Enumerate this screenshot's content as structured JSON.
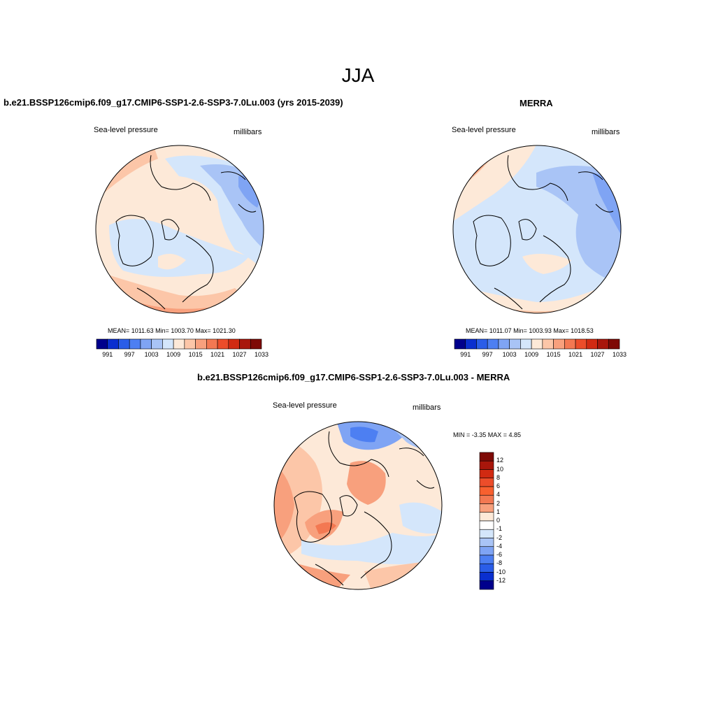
{
  "main_title": "JJA",
  "palette": [
    "#00008c",
    "#0a2fcf",
    "#2a5de8",
    "#4d7ff2",
    "#7fa4f4",
    "#a9c4f6",
    "#d4e6fb",
    "#fde9d8",
    "#fcc6a8",
    "#f8a07d",
    "#f37852",
    "#ec4d2a",
    "#d12a12",
    "#a8160b",
    "#7e0a06"
  ],
  "panels": {
    "model": {
      "title": "b.e21.BSSP126cmip6.f09_g17.CMIP6-SSP1-2.6-SSP3-7.0Lu.003 (yrs 2015-2039)",
      "variable": "Sea-level pressure",
      "units": "millibars",
      "stats": "MEAN= 1011.63  Min= 1003.70  Max= 1021.30",
      "colorbar_ticks": [
        "991",
        "997",
        "1003",
        "1009",
        "1015",
        "1021",
        "1027",
        "1033"
      ]
    },
    "obs": {
      "title": "MERRA",
      "variable": "Sea-level pressure",
      "units": "millibars",
      "stats": "MEAN= 1011.07  Min= 1003.93  Max= 1018.53",
      "colorbar_ticks": [
        "991",
        "997",
        "1003",
        "1009",
        "1015",
        "1021",
        "1027",
        "1033"
      ]
    },
    "diff": {
      "title": "b.e21.BSSP126cmip6.f09_g17.CMIP6-SSP1-2.6-SSP3-7.0Lu.003 - MERRA",
      "variable": "Sea-level pressure",
      "units": "millibars",
      "stats": "MIN =  -3.35 MAX =   4.85",
      "colorbar_labels": [
        "12",
        "10",
        "8",
        "6",
        "4",
        "2",
        "1",
        "0",
        "-1",
        "-2",
        "-4",
        "-6",
        "-8",
        "-10",
        "-12"
      ],
      "colorbar_colors": [
        "#7e0a06",
        "#a8160b",
        "#d12a12",
        "#ec4d2a",
        "#f8602f",
        "#f37852",
        "#f8a07d",
        "#fde9d8",
        "#ffffff",
        "#d4e6fb",
        "#a9c4f6",
        "#7fa4f4",
        "#4d7ff2",
        "#2a5de8",
        "#0a2fcf",
        "#00008c"
      ]
    }
  }
}
